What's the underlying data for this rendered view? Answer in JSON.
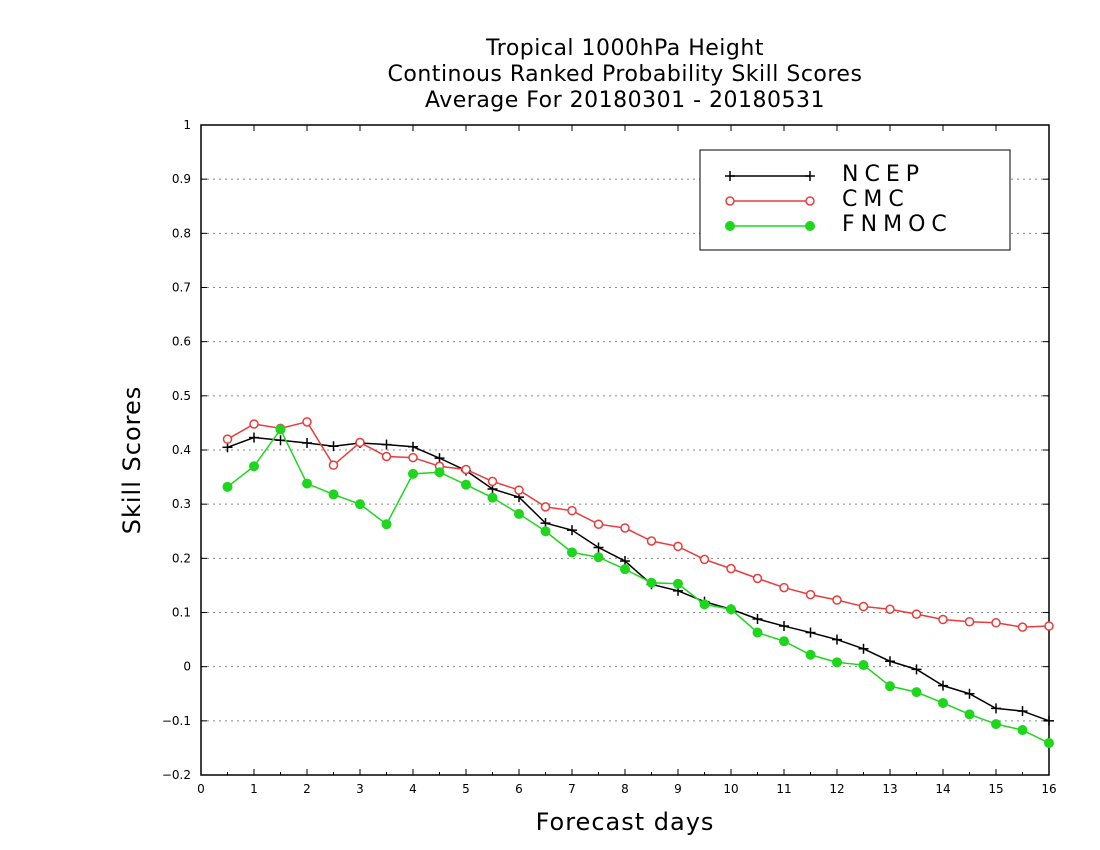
{
  "chart_data": {
    "type": "line",
    "title": [
      "Tropical 1000hPa Height",
      "Continous Ranked Probability Skill Scores",
      "Average For 20180301 - 20180531"
    ],
    "xlabel": "Forecast days",
    "ylabel": "Skill Scores",
    "xlim": [
      0,
      16
    ],
    "ylim": [
      -0.2,
      1
    ],
    "xticks": [
      0,
      1,
      2,
      3,
      4,
      5,
      6,
      7,
      8,
      9,
      10,
      11,
      12,
      13,
      14,
      15,
      16
    ],
    "yticks": [
      -0.2,
      -0.1,
      0,
      0.1,
      0.2,
      0.3,
      0.4,
      0.5,
      0.6,
      0.7,
      0.8,
      0.9,
      1
    ],
    "ytick_labels": [
      "−0.2",
      "−0.1",
      "0",
      "0.1",
      "0.2",
      "0.3",
      "0.4",
      "0.5",
      "0.6",
      "0.7",
      "0.8",
      "0.9",
      "1"
    ],
    "grid": "horizontal dotted",
    "legend": "top-right",
    "x": [
      0.5,
      1,
      1.5,
      2,
      2.5,
      3,
      3.5,
      4,
      4.5,
      5,
      5.5,
      6,
      6.5,
      7,
      7.5,
      8,
      8.5,
      9,
      9.5,
      10,
      10.5,
      11,
      11.5,
      12,
      12.5,
      13,
      13.5,
      14,
      14.5,
      15,
      15.5,
      16
    ],
    "series": [
      {
        "name": "NCEP",
        "color": "#000000",
        "marker": "plus",
        "values": [
          0.405,
          0.423,
          0.418,
          0.413,
          0.407,
          0.413,
          0.41,
          0.406,
          0.385,
          0.362,
          0.328,
          0.313,
          0.265,
          0.252,
          0.22,
          0.195,
          0.152,
          0.14,
          0.12,
          0.106,
          0.088,
          0.075,
          0.063,
          0.05,
          0.033,
          0.01,
          -0.005,
          -0.035,
          -0.05,
          -0.077,
          -0.082,
          -0.1
        ]
      },
      {
        "name": "CMC",
        "color": "#e83c3c",
        "marker": "open-circle",
        "values": [
          0.42,
          0.448,
          0.44,
          0.452,
          0.372,
          0.414,
          0.388,
          0.386,
          0.37,
          0.364,
          0.342,
          0.326,
          0.295,
          0.288,
          0.263,
          0.256,
          0.232,
          0.222,
          0.198,
          0.181,
          0.163,
          0.146,
          0.133,
          0.123,
          0.111,
          0.106,
          0.097,
          0.087,
          0.083,
          0.081,
          0.073,
          0.075
        ]
      },
      {
        "name": "FNMOC",
        "color": "#1ed61e",
        "marker": "filled-circle",
        "values": [
          0.332,
          0.37,
          0.438,
          0.338,
          0.318,
          0.3,
          0.263,
          0.356,
          0.359,
          0.336,
          0.312,
          0.282,
          0.25,
          0.211,
          0.202,
          0.18,
          0.155,
          0.153,
          0.115,
          0.106,
          0.063,
          0.047,
          0.022,
          0.008,
          0.003,
          -0.036,
          -0.047,
          -0.067,
          -0.088,
          -0.106,
          -0.117,
          -0.141
        ]
      }
    ]
  }
}
